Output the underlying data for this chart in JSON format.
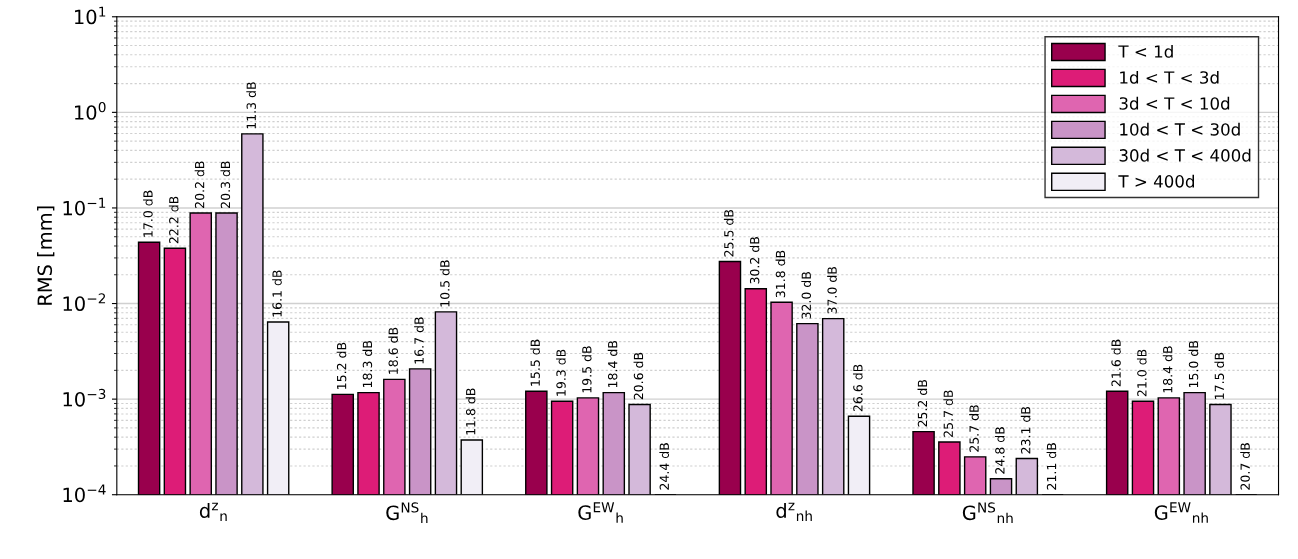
{
  "chart_data": {
    "type": "bar",
    "ylabel": "RMS [mm]",
    "log": true,
    "grid": "y",
    "legend": "top right",
    "categories": [
      "d$^{z}$$_{n}$",
      "G$^{NS}$$_{h}$",
      "G$^{EW}$$_{h}$",
      "d$^{z}$$_{nh}$",
      "G$^{NS}$$_{nh}$",
      "G$^{EW}$$_{nh}$"
    ],
    "ylim": [
      0.0001,
      10
    ],
    "yticks": [
      {
        "value": 0.0001,
        "label": "10$^{−4}$"
      },
      {
        "value": 0.001,
        "label": "10$^{−3}$"
      },
      {
        "value": 0.01,
        "label": "10$^{−2}$"
      },
      {
        "value": 0.1,
        "label": "10$^{−1}$"
      },
      {
        "value": 1,
        "label": "10$^{0}$"
      },
      {
        "value": 10,
        "label": "10$^{1}$"
      }
    ],
    "series": [
      {
        "name": "T < 1d",
        "color": "#99004d",
        "values": [
          0.0438,
          0.00112,
          0.00121,
          0.0275,
          0.000457,
          0.00121
        ]
      },
      {
        "name": "1d < T < 3d",
        "color": "#dd1c77",
        "values": [
          0.0379,
          0.00117,
          0.00095,
          0.0143,
          0.000356,
          0.00095
        ]
      },
      {
        "name": "3d < T < 10d",
        "color": "#df65b0",
        "values": [
          0.0885,
          0.00161,
          0.00103,
          0.0103,
          0.000249,
          0.00103
        ]
      },
      {
        "name": "10d < T < 30d",
        "color": "#c994c7",
        "values": [
          0.0885,
          0.00207,
          0.00117,
          0.00616,
          0.000147,
          0.00117
        ]
      },
      {
        "name": "30d < T < 400d",
        "color": "#d4b9da",
        "values": [
          0.595,
          0.00817,
          0.00088,
          0.00695,
          0.000239,
          0.00088
        ]
      },
      {
        "name": "T > 400d",
        "color": "#f1eef6",
        "values": [
          0.00641,
          0.000373,
          null,
          0.000662,
          null,
          null
        ]
      }
    ],
    "annotations": [
      "17.0 dB",
      "22.2 dB",
      "20.2 dB",
      "20.3 dB",
      "11.3 dB",
      "16.1 dB",
      "15.2 dB",
      "18.3 dB",
      "18.6 dB",
      "16.7 dB",
      "10.5 dB",
      "11.8 dB",
      "15.5 dB",
      "19.3 dB",
      "19.5 dB",
      "18.4 dB",
      "20.6 dB",
      "24.4 dB",
      "25.5 dB",
      "30.2 dB",
      "31.8 dB",
      "32.0 dB",
      "37.0 dB",
      "26.6 dB",
      "25.2 dB",
      "25.7 dB",
      "25.7 dB",
      "24.8 dB",
      "23.1 dB",
      "21.1 dB",
      "21.6 dB",
      "21.0 dB",
      "18.4 dB",
      "15.0 dB",
      "17.5 dB",
      "20.7 dB"
    ]
  }
}
